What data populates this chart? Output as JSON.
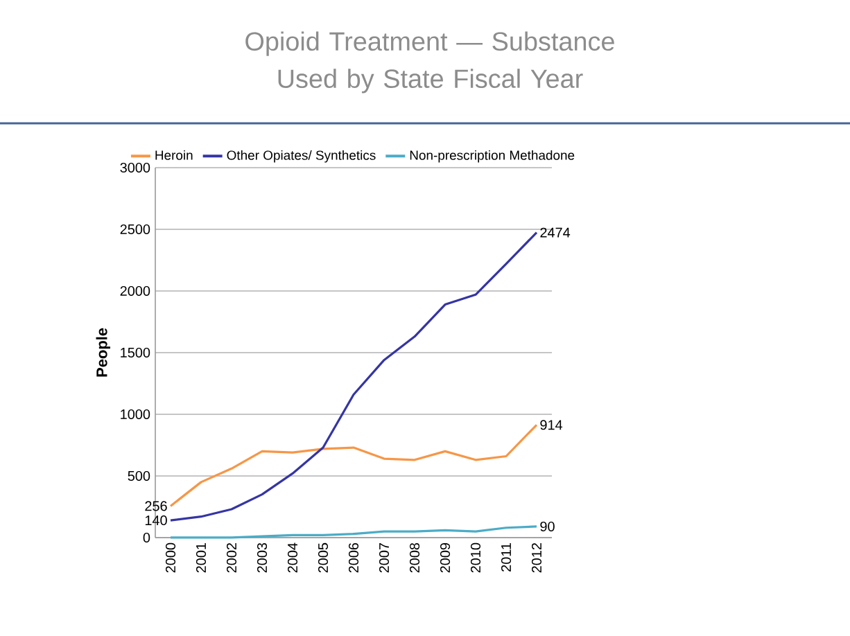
{
  "chart_data": {
    "type": "line",
    "title": "Opioid Treatment — Substance Used by State Fiscal Year",
    "ylabel": "People",
    "categories": [
      "2000",
      "2001",
      "2002",
      "2003",
      "2004",
      "2005",
      "2006",
      "2007",
      "2008",
      "2009",
      "2010",
      "2011",
      "2012"
    ],
    "series": [
      {
        "name": "Heroin",
        "color": "#f79646",
        "values": [
          256,
          450,
          560,
          700,
          690,
          720,
          730,
          640,
          630,
          700,
          630,
          660,
          914
        ],
        "value_labels": [
          "256",
          null,
          null,
          null,
          null,
          null,
          null,
          null,
          null,
          null,
          null,
          null,
          "914"
        ]
      },
      {
        "name": "Other Opiates/ Synthetics",
        "color": "#3535a5",
        "values": [
          140,
          170,
          230,
          350,
          520,
          730,
          1160,
          1440,
          1630,
          1890,
          1970,
          2220,
          2474
        ],
        "value_labels": [
          "140",
          null,
          null,
          null,
          null,
          null,
          null,
          null,
          null,
          null,
          null,
          null,
          "2474"
        ]
      },
      {
        "name": "Non-prescription Methadone",
        "color": "#4bacc6",
        "values": [
          0,
          0,
          0,
          10,
          20,
          20,
          30,
          50,
          50,
          60,
          50,
          80,
          90
        ],
        "value_labels": [
          null,
          null,
          null,
          null,
          null,
          null,
          null,
          null,
          null,
          null,
          null,
          null,
          "90"
        ]
      }
    ],
    "ylim": [
      0,
      3000
    ],
    "yticks": [
      0,
      500,
      1000,
      1500,
      2000,
      2500,
      3000
    ],
    "grid": "y",
    "legend": "top",
    "marker": "none",
    "line_style": "solid"
  }
}
